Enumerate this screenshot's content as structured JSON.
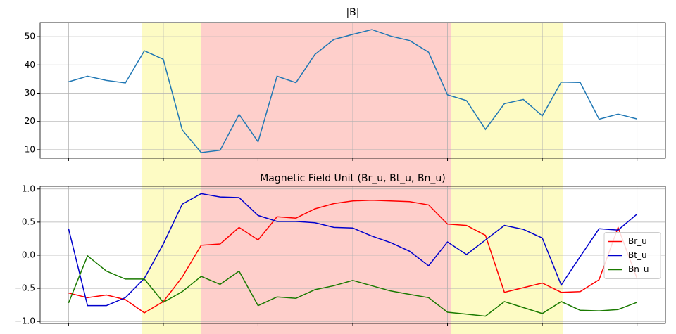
{
  "highlight_spans": [
    {
      "start": 3.87,
      "end": 7,
      "color": "#fdfbc4"
    },
    {
      "start": 7,
      "end": 20.2,
      "color": "#fecfcb"
    },
    {
      "start": 20.2,
      "end": 26.1,
      "color": "#fdfbc4"
    }
  ],
  "chart_data": [
    {
      "type": "line",
      "title": "|B|",
      "color": "#1f77b4",
      "values": [
        34,
        36,
        34.5,
        33.6,
        45,
        42,
        17,
        9,
        9.8,
        22.5,
        12.8,
        36,
        33.7,
        43.7,
        49,
        50.8,
        52.5,
        50.2,
        48.6,
        44.5,
        29.4,
        27.4,
        17.2,
        26.3,
        27.8,
        22,
        33.9,
        33.8,
        20.8,
        22.6,
        20.9
      ],
      "xlim": [
        -1.5,
        31.5
      ],
      "xticks": [
        0,
        5,
        10,
        15,
        20,
        25,
        30
      ],
      "x_tick_labels": false,
      "ylim": [
        7,
        55
      ],
      "yticks": [
        10,
        20,
        30,
        40,
        50
      ],
      "grid": true
    },
    {
      "type": "line",
      "title": "Magnetic Field Unit (Br_u, Bt_u, Bn_u)",
      "series": [
        {
          "name": "Br_u",
          "color": "#ff0000",
          "values": [
            -0.57,
            -0.64,
            -0.6,
            -0.67,
            -0.87,
            -0.7,
            -0.33,
            0.15,
            0.17,
            0.42,
            0.23,
            0.58,
            0.56,
            0.7,
            0.78,
            0.82,
            0.83,
            0.82,
            0.81,
            0.76,
            0.47,
            0.45,
            0.3,
            -0.56,
            -0.49,
            -0.42,
            -0.56,
            -0.55,
            -0.37,
            0.42,
            -0.35
          ]
        },
        {
          "name": "Bt_u",
          "color": "#0000cc",
          "values": [
            0.4,
            -0.76,
            -0.76,
            -0.64,
            -0.35,
            0.17,
            0.77,
            0.93,
            0.88,
            0.87,
            0.6,
            0.51,
            0.51,
            0.49,
            0.42,
            0.41,
            0.29,
            0.19,
            0.06,
            -0.16,
            0.2,
            0.01,
            0.23,
            0.45,
            0.39,
            0.26,
            -0.45,
            -0.02,
            0.4,
            0.38,
            0.62
          ]
        },
        {
          "name": "Bn_u",
          "color": "#1a7a00",
          "values": [
            -0.72,
            -0.01,
            -0.24,
            -0.36,
            -0.36,
            -0.71,
            -0.55,
            -0.32,
            -0.44,
            -0.24,
            -0.76,
            -0.63,
            -0.65,
            -0.52,
            -0.46,
            -0.38,
            -0.46,
            -0.54,
            -0.59,
            -0.64,
            -0.86,
            -0.89,
            -0.92,
            -0.7,
            -0.79,
            -0.88,
            -0.7,
            -0.83,
            -0.84,
            -0.82,
            -0.71
          ]
        }
      ],
      "xlim": [
        -1.5,
        31.5
      ],
      "xticks": [
        0,
        5,
        10,
        15,
        20,
        25,
        30
      ],
      "x_tick_labels": false,
      "ylim": [
        -1.03,
        1.04
      ],
      "yticks": [
        {
          "value": -1.0,
          "label": "−1.0"
        },
        {
          "value": -0.5,
          "label": "−0.5"
        },
        {
          "value": 0.0,
          "label": "0.0"
        },
        {
          "value": 0.5,
          "label": "0.5"
        },
        {
          "value": 1.0,
          "label": "1.0"
        }
      ],
      "grid": true,
      "legend": "center right"
    }
  ]
}
